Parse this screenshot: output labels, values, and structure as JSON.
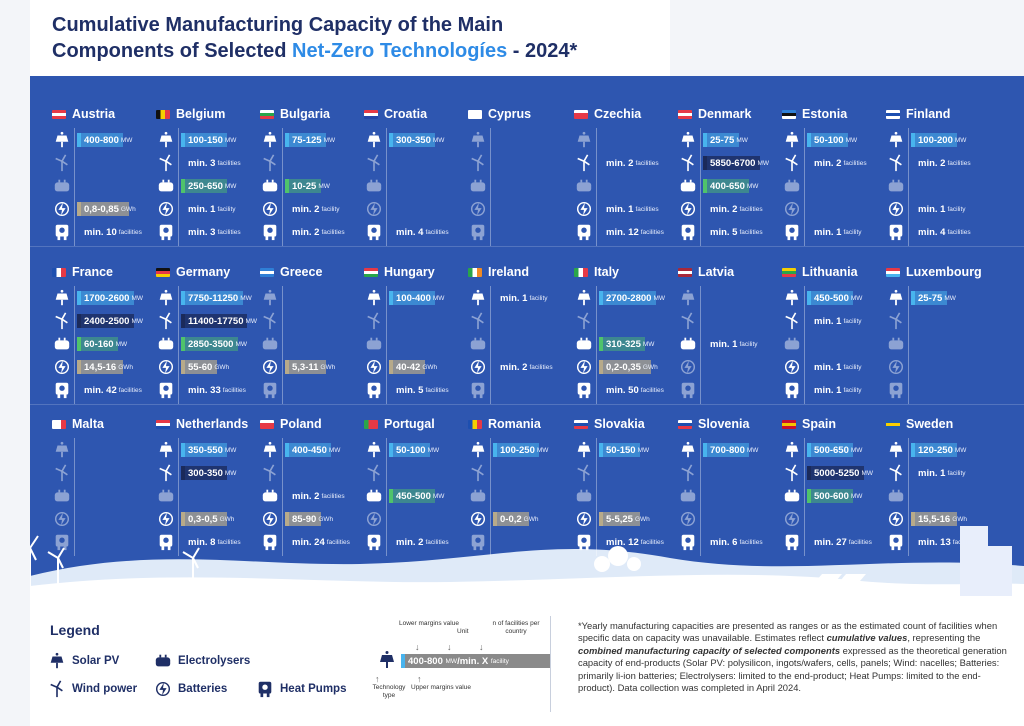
{
  "title": {
    "line1": "Cumulative Manufacturing Capacity of the Main",
    "line2_pre": "Components of Selected ",
    "line2_accent": "Net-Zero Technologíes",
    "line2_post": " - 2024*"
  },
  "colors": {
    "solar": "#48b4ee",
    "wind": "#1b2a5a",
    "electrolysers": "#4fc36b",
    "batteries": "#b7aa8a",
    "panel": "#2e56b0"
  },
  "icons": [
    "solar-panel-icon",
    "wind-turbine-icon",
    "electrolyser-icon",
    "battery-icon",
    "heat-pump-icon"
  ],
  "countries": [
    {
      "name": "Austria",
      "flag": [
        "#e63946",
        "#ffffff",
        "#e63946"
      ],
      "vals": [
        [
          "400-800",
          "MW"
        ],
        null,
        null,
        [
          "0,8-0,85",
          "GWh"
        ],
        [
          "min. 10",
          "facilities"
        ]
      ]
    },
    {
      "name": "Belgium",
      "flag": [
        "#111111",
        "#f5d000",
        "#e63946"
      ],
      "vert": true,
      "vals": [
        [
          "100-150",
          "MW"
        ],
        [
          "min. 3",
          "facilities"
        ],
        [
          "250-650",
          "MW"
        ],
        [
          "min. 1",
          "facility"
        ],
        [
          "min. 3",
          "facilities"
        ]
      ]
    },
    {
      "name": "Bulgaria",
      "flag": [
        "#ffffff",
        "#2aa54a",
        "#e63946"
      ],
      "vals": [
        [
          "75-125",
          "MW"
        ],
        null,
        [
          "10-25",
          "MW"
        ],
        [
          "min. 2",
          "facility"
        ],
        [
          "min. 2",
          "facilities"
        ]
      ]
    },
    {
      "name": "Croatia",
      "flag": [
        "#e63946",
        "#ffffff",
        "#2446a8"
      ],
      "vals": [
        [
          "300-350",
          "MW"
        ],
        null,
        null,
        null,
        [
          "min. 4",
          "facilities"
        ]
      ]
    },
    {
      "name": "Cyprus",
      "flag": [
        "#ffffff",
        "#ffffff",
        "#ffffff"
      ],
      "vals": [
        null,
        null,
        null,
        null,
        null
      ]
    },
    {
      "name": "Czechia",
      "flag": [
        "#ffffff",
        "#e63946",
        "#e63946"
      ],
      "vals": [
        null,
        [
          "min. 2",
          "facilities"
        ],
        null,
        [
          "min. 1",
          "facilities"
        ],
        [
          "min. 12",
          "facilities"
        ]
      ]
    },
    {
      "name": "Denmark",
      "flag": [
        "#e63946",
        "#ffffff",
        "#e63946"
      ],
      "vals": [
        [
          "25-75",
          "MW"
        ],
        [
          "5850-6700",
          "MW"
        ],
        [
          "400-650",
          "MW"
        ],
        [
          "min. 2",
          "facilities"
        ],
        [
          "min. 5",
          "facilities"
        ]
      ]
    },
    {
      "name": "Estonia",
      "flag": [
        "#2f7fd6",
        "#111111",
        "#ffffff"
      ],
      "vals": [
        [
          "50-100",
          "MW"
        ],
        [
          "min. 2",
          "facilities"
        ],
        null,
        null,
        [
          "min. 1",
          "facility"
        ]
      ]
    },
    {
      "name": "Finland",
      "flag": [
        "#ffffff",
        "#1d4fb0",
        "#ffffff"
      ],
      "vals": [
        [
          "100-200",
          "MW"
        ],
        [
          "min. 2",
          "facilities"
        ],
        null,
        [
          "min. 1",
          "facility"
        ],
        [
          "min. 4",
          "facilities"
        ]
      ]
    },
    {
      "name": "France",
      "flag": [
        "#1d4fb0",
        "#ffffff",
        "#e63946"
      ],
      "vert": true,
      "vals": [
        [
          "1700-2600",
          "MW"
        ],
        [
          "2400-2500",
          "MW"
        ],
        [
          "60-160",
          "MW"
        ],
        [
          "14,5-16",
          "GWh"
        ],
        [
          "min. 42",
          "facilities"
        ]
      ]
    },
    {
      "name": "Germany",
      "flag": [
        "#111111",
        "#e63946",
        "#f5d000"
      ],
      "vals": [
        [
          "7750-11250",
          "MW"
        ],
        [
          "11400-17750",
          "MW"
        ],
        [
          "2850-3500",
          "MW"
        ],
        [
          "55-60",
          "GWh"
        ],
        [
          "min. 33",
          "facilities"
        ]
      ]
    },
    {
      "name": "Greece",
      "flag": [
        "#2f7fd6",
        "#ffffff",
        "#2f7fd6"
      ],
      "vals": [
        null,
        null,
        null,
        [
          "5,3-11",
          "GWh"
        ],
        null
      ]
    },
    {
      "name": "Hungary",
      "flag": [
        "#e63946",
        "#ffffff",
        "#2aa54a"
      ],
      "vals": [
        [
          "100-400",
          "MW"
        ],
        null,
        null,
        [
          "40-42",
          "GWh"
        ],
        [
          "min. 5",
          "facilities"
        ]
      ]
    },
    {
      "name": "Ireland",
      "flag": [
        "#2aa54a",
        "#ffffff",
        "#f08a24"
      ],
      "vert": true,
      "vals": [
        [
          "min. 1",
          "facility"
        ],
        null,
        null,
        [
          "min. 2",
          "facilities"
        ],
        null
      ]
    },
    {
      "name": "Italy",
      "flag": [
        "#2aa54a",
        "#ffffff",
        "#e63946"
      ],
      "vert": true,
      "vals": [
        [
          "2700-2800",
          "MW"
        ],
        null,
        [
          "310-325",
          "MW"
        ],
        [
          "0,2-0,35",
          "GWh"
        ],
        [
          "min. 50",
          "facilities"
        ]
      ]
    },
    {
      "name": "Latvia",
      "flag": [
        "#a8283a",
        "#ffffff",
        "#a8283a"
      ],
      "vals": [
        null,
        null,
        [
          "min. 1",
          "facility"
        ],
        null,
        null
      ]
    },
    {
      "name": "Lithuania",
      "flag": [
        "#f5d000",
        "#2aa54a",
        "#e63946"
      ],
      "vals": [
        [
          "450-500",
          "MW"
        ],
        [
          "min. 1",
          "facility"
        ],
        null,
        [
          "min. 1",
          "facility"
        ],
        [
          "min. 1",
          "facility"
        ]
      ]
    },
    {
      "name": "Luxembourg",
      "flag": [
        "#e63946",
        "#ffffff",
        "#48b4ee"
      ],
      "vals": [
        [
          "25-75",
          "MW"
        ],
        null,
        null,
        null,
        null
      ]
    },
    {
      "name": "Malta",
      "flag": [
        "#ffffff",
        "#ffffff",
        "#e63946"
      ],
      "vert": true,
      "vals": [
        null,
        null,
        null,
        null,
        null
      ]
    },
    {
      "name": "Netherlands",
      "flag": [
        "#e63946",
        "#ffffff",
        "#1d4fb0"
      ],
      "vals": [
        [
          "350-550",
          "MW"
        ],
        [
          "300-350",
          "MW"
        ],
        null,
        [
          "0,3-0,5",
          "GWh"
        ],
        [
          "min. 8",
          "facilities"
        ]
      ]
    },
    {
      "name": "Poland",
      "flag": [
        "#ffffff",
        "#e63946",
        "#e63946"
      ],
      "vals": [
        [
          "400-450",
          "MW"
        ],
        null,
        [
          "min. 2",
          "facilities"
        ],
        [
          "85-90",
          "GWh"
        ],
        [
          "min. 24",
          "facilities"
        ]
      ]
    },
    {
      "name": "Portugal",
      "flag": [
        "#2aa54a",
        "#e63946",
        "#e63946"
      ],
      "vert": true,
      "vals": [
        [
          "50-100",
          "MW"
        ],
        null,
        [
          "450-500",
          "MW"
        ],
        null,
        [
          "min. 2",
          "facilities"
        ]
      ]
    },
    {
      "name": "Romania",
      "flag": [
        "#1d4fb0",
        "#f5d000",
        "#e63946"
      ],
      "vert": true,
      "vals": [
        [
          "100-250",
          "MW"
        ],
        null,
        null,
        [
          "0-0,2",
          "GWh"
        ],
        null
      ]
    },
    {
      "name": "Slovakia",
      "flag": [
        "#ffffff",
        "#1d4fb0",
        "#e63946"
      ],
      "vals": [
        [
          "50-150",
          "MW"
        ],
        null,
        null,
        [
          "5-5,25",
          "GWh"
        ],
        [
          "min. 12",
          "facilities"
        ]
      ]
    },
    {
      "name": "Slovenia",
      "flag": [
        "#ffffff",
        "#1d4fb0",
        "#e63946"
      ],
      "vals": [
        [
          "700-800",
          "MW"
        ],
        null,
        null,
        null,
        [
          "min. 6",
          "facilities"
        ]
      ]
    },
    {
      "name": "Spain",
      "flag": [
        "#c8102e",
        "#f5c400",
        "#c8102e"
      ],
      "vals": [
        [
          "500-650",
          "MW"
        ],
        [
          "5000-5250",
          "MW"
        ],
        [
          "500-600",
          "MW"
        ],
        null,
        [
          "min. 27",
          "facilities"
        ]
      ]
    },
    {
      "name": "Sweden",
      "flag": [
        "#1d5fb0",
        "#f5d000",
        "#1d5fb0"
      ],
      "vals": [
        [
          "120-250",
          "MW"
        ],
        [
          "min. 1",
          "facility"
        ],
        null,
        [
          "15,5-16",
          "GWh"
        ],
        [
          "min. 13",
          "facilities"
        ]
      ]
    }
  ],
  "legend": {
    "title": "Legend",
    "solar": "Solar PV",
    "wind": "Wind power",
    "elec": "Electrolysers",
    "batt": "Batteries",
    "heat": "Heat Pumps",
    "schema": {
      "lower": "Lower margins value",
      "unit": "Unit",
      "nfac": "n of facilities per country",
      "sample_range": "400-800",
      "sample_unit": "MW",
      "sample_sep": " / ",
      "sample_min": "min. X",
      "sample_fac": "facility",
      "tech": "Technology type",
      "upper": "Upper margins value"
    },
    "note_1": "*Yearly manufacturing capacities are presented as ranges or as the estimated count of facilities when specific data on capacity was unavailable. Estimates reflect ",
    "note_b1": "cumulative values",
    "note_2": ", representing the ",
    "note_b2": "combined manufacturing capacity of selected components",
    "note_3": " expressed as the theoretical generation capacity of end-products (Solar PV: polysilicon, ingots/wafers, cells, panels; Wind: nacelles; Batteries: primarily li-ion batteries; Electrolysers: limited to the end-product; Heat Pumps: limited to the end-product). Data collection was completed in April 2024."
  }
}
